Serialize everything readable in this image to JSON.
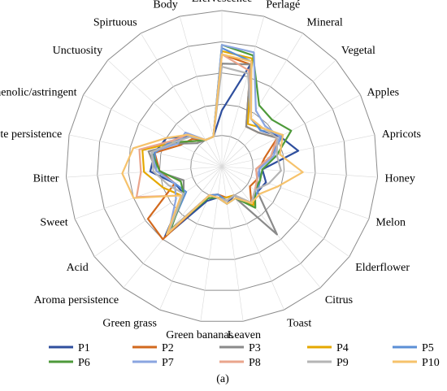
{
  "chart_data": {
    "type": "radar",
    "ylim": [
      0,
      5
    ],
    "grid": true,
    "legend_position": "bottom",
    "subfigure_label": "a",
    "categories": [
      "Efervescence",
      "Perlagé",
      "Mineral",
      "Vegetal",
      "Apples",
      "Apricots",
      "Honey",
      "Melon",
      "Elderflower",
      "Citrus",
      "Toast",
      "Leaven",
      "Green bananas",
      "Green grass",
      "Aroma persistence",
      "Acid",
      "Sweet",
      "Bitter",
      "Taste persistence",
      "Phenolic/astringent",
      "Unctuosity",
      "Spirtuous",
      "Body"
    ],
    "series": [
      {
        "name": "P1",
        "color": "#2f4f9e",
        "values": [
          1.8,
          3.4,
          1.8,
          1.7,
          2.1,
          2.5,
          1.3,
          1.5,
          1.4,
          1.5,
          1.0,
          1.2,
          1.0,
          1.2,
          2.9,
          1.5,
          1.6,
          2.3,
          2.2,
          2.0,
          1.4,
          1.0,
          1.0
        ]
      },
      {
        "name": "P2",
        "color": "#d2691e",
        "values": [
          3.6,
          3.4,
          1.5,
          1.6,
          2.0,
          1.4,
          1.2,
          1.2,
          1.1,
          1.5,
          1.0,
          1.0,
          0.9,
          1.0,
          3.0,
          2.9,
          1.6,
          2.0,
          2.2,
          1.5,
          1.3,
          1.0,
          1.0
        ]
      },
      {
        "name": "P3",
        "color": "#8a8a8a",
        "values": [
          3.3,
          3.4,
          1.5,
          1.6,
          2.0,
          1.6,
          1.1,
          1.2,
          1.4,
          2.8,
          1.1,
          1.2,
          1.0,
          1.0,
          2.6,
          1.5,
          1.3,
          2.1,
          2.4,
          1.6,
          1.1,
          1.0,
          1.0
        ]
      },
      {
        "name": "P4",
        "color": "#e5a800",
        "values": [
          3.7,
          3.6,
          1.6,
          1.8,
          2.2,
          1.6,
          1.2,
          1.2,
          1.3,
          1.6,
          1.0,
          1.0,
          1.0,
          1.0,
          2.7,
          1.6,
          2.0,
          2.5,
          2.6,
          1.7,
          1.2,
          1.0,
          1.0
        ]
      },
      {
        "name": "P5",
        "color": "#5b8fd6",
        "values": [
          3.8,
          3.5,
          1.8,
          1.7,
          2.2,
          1.6,
          1.2,
          1.3,
          1.4,
          1.5,
          1.0,
          1.1,
          0.9,
          1.0,
          2.7,
          1.4,
          1.6,
          2.1,
          2.2,
          1.8,
          1.4,
          1.0,
          1.0
        ]
      },
      {
        "name": "P6",
        "color": "#4e9a3a",
        "values": [
          3.9,
          3.7,
          2.3,
          2.2,
          2.5,
          1.8,
          1.3,
          1.3,
          1.3,
          1.7,
          1.1,
          1.2,
          1.0,
          1.1,
          2.6,
          1.5,
          1.4,
          2.0,
          2.3,
          1.7,
          1.2,
          1.0,
          1.0
        ]
      },
      {
        "name": "P7",
        "color": "#8aa5e0",
        "values": [
          3.9,
          3.8,
          2.1,
          1.9,
          2.1,
          1.7,
          1.2,
          1.2,
          1.3,
          1.5,
          1.1,
          1.2,
          1.0,
          1.0,
          2.7,
          1.8,
          1.6,
          2.1,
          2.3,
          1.6,
          1.6,
          1.0,
          1.0
        ]
      },
      {
        "name": "P8",
        "color": "#eaa58c",
        "values": [
          3.6,
          3.2,
          1.8,
          1.8,
          2.0,
          1.6,
          1.1,
          1.2,
          1.3,
          1.5,
          1.0,
          1.1,
          1.0,
          1.0,
          2.7,
          1.6,
          2.9,
          2.6,
          2.7,
          1.8,
          1.5,
          1.0,
          1.0
        ]
      },
      {
        "name": "P9",
        "color": "#b5b5b5",
        "values": [
          3.2,
          3.1,
          1.8,
          1.8,
          2.0,
          1.8,
          1.9,
          1.6,
          1.3,
          1.5,
          1.0,
          1.1,
          1.0,
          1.0,
          2.7,
          1.5,
          1.8,
          2.2,
          2.3,
          1.7,
          1.4,
          1.0,
          1.0
        ]
      },
      {
        "name": "P10",
        "color": "#f6c26b",
        "values": [
          3.6,
          3.5,
          1.8,
          1.8,
          2.2,
          1.9,
          2.6,
          1.9,
          1.5,
          1.5,
          1.1,
          1.2,
          1.0,
          1.0,
          2.8,
          1.6,
          3.0,
          3.2,
          2.9,
          2.0,
          1.5,
          1.0,
          1.0
        ]
      }
    ]
  }
}
